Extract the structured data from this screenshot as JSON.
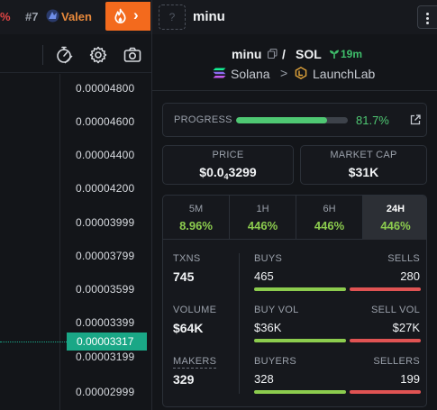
{
  "topbar": {
    "ticker_change": "%",
    "ticker_rank": "#7",
    "ticker_name": "Valen",
    "hot_button_icon": "fire-icon",
    "hot_chevron": "›",
    "token_image_placeholder": "?",
    "token_title": "minu",
    "more_menu_icon": "vertical-dots-icon"
  },
  "chart": {
    "tools": [
      "measure-icon",
      "settings-gear-icon",
      "camera-icon"
    ],
    "price_ticks": [
      "0.00004800",
      "0.00004600",
      "0.00004400",
      "0.00004200",
      "0.00003999",
      "0.00003799",
      "0.00003599",
      "0.00003399",
      "0.00003199",
      "0.00002999"
    ],
    "current_price_tag": "0.00003317",
    "accent_color": "#1aa786"
  },
  "token": {
    "symbol": "minu",
    "separator": "/",
    "quote": "SOL",
    "age": "19m",
    "chain": "Solana",
    "breadcrumb_separator": ">",
    "launchpad": "LaunchLab"
  },
  "progress": {
    "label": "PROGRESS",
    "value_text": "81.7%",
    "fraction": 0.817,
    "color": "#4fc873"
  },
  "price": {
    "label": "PRICE",
    "prefix": "$0.0",
    "zeros": "4",
    "digits": "3299"
  },
  "market_cap": {
    "label": "MARKET CAP",
    "value": "$31K"
  },
  "timeframes": [
    {
      "label": "5M",
      "change": "8.96%"
    },
    {
      "label": "1H",
      "change": "446%"
    },
    {
      "label": "6H",
      "change": "446%"
    },
    {
      "label": "24H",
      "change": "446%"
    }
  ],
  "stats": {
    "txns_label": "TXNS",
    "txns": "745",
    "volume_label": "VOLUME",
    "volume": "$64K",
    "makers_label": "MAKERS",
    "makers": "329",
    "buys_label": "BUYS",
    "buys": "465",
    "sells_label": "SELLS",
    "sells": "280",
    "buy_vol_label": "BUY VOL",
    "buy_vol": "$36K",
    "sell_vol_label": "SELL VOL",
    "sell_vol": "$27K",
    "buyers_label": "BUYERS",
    "buyers": "328",
    "sellers_label": "SELLERS",
    "sellers": "199",
    "buy_color": "#8ccc4e",
    "sell_color": "#e05353"
  }
}
